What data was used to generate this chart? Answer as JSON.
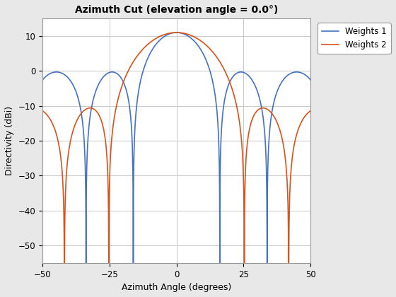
{
  "title": "Azimuth Cut (elevation angle = 0.0°)",
  "xlabel": "Azimuth Angle (degrees)",
  "ylabel": "Directivity (dBi)",
  "color1": "#4472C4",
  "color2": "#D95319",
  "label1": "Weights 1",
  "label2": "Weights 2",
  "xlim": [
    -50,
    50
  ],
  "ylim": [
    -55,
    15
  ],
  "yticks": [
    -50,
    -40,
    -30,
    -20,
    -10,
    0,
    10
  ],
  "xticks": [
    -50,
    -25,
    0,
    25,
    50
  ],
  "peak_gain": 11.0,
  "background_color": "#E8E8E8",
  "axes_background": "#FFFFFF",
  "grid_color": "#C8C8C8"
}
